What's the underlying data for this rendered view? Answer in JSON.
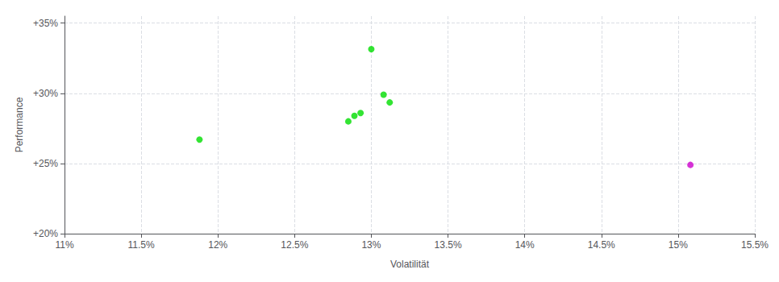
{
  "chart_data": {
    "type": "scatter",
    "xlabel": "Volatilität",
    "ylabel": "Performance",
    "xlim": [
      0.11,
      0.155
    ],
    "ylim": [
      0.2,
      0.355
    ],
    "xticks": [
      {
        "value": 0.11,
        "label": "11%"
      },
      {
        "value": 0.115,
        "label": "11.5%"
      },
      {
        "value": 0.12,
        "label": "12%"
      },
      {
        "value": 0.125,
        "label": "12.5%"
      },
      {
        "value": 0.13,
        "label": "13%"
      },
      {
        "value": 0.135,
        "label": "13.5%"
      },
      {
        "value": 0.14,
        "label": "14%"
      },
      {
        "value": 0.145,
        "label": "14.5%"
      },
      {
        "value": 0.15,
        "label": "15%"
      },
      {
        "value": 0.155,
        "label": "15.5%"
      }
    ],
    "yticks": [
      {
        "value": 0.2,
        "label": "+20%"
      },
      {
        "value": 0.25,
        "label": "+25%"
      },
      {
        "value": 0.3,
        "label": "+30%"
      },
      {
        "value": 0.35,
        "label": "+35%"
      }
    ],
    "grid": true,
    "series": [
      {
        "color": "#00dd00",
        "x": [
          0.1188,
          0.13,
          0.1308,
          0.1312,
          0.1293,
          0.1289,
          0.1285
        ],
        "values": [
          0.267,
          0.3315,
          0.299,
          0.2935,
          0.286,
          0.284,
          0.28
        ]
      },
      {
        "color": "#cc00cc",
        "x": [
          0.1508
        ],
        "values": [
          0.249
        ]
      }
    ]
  }
}
